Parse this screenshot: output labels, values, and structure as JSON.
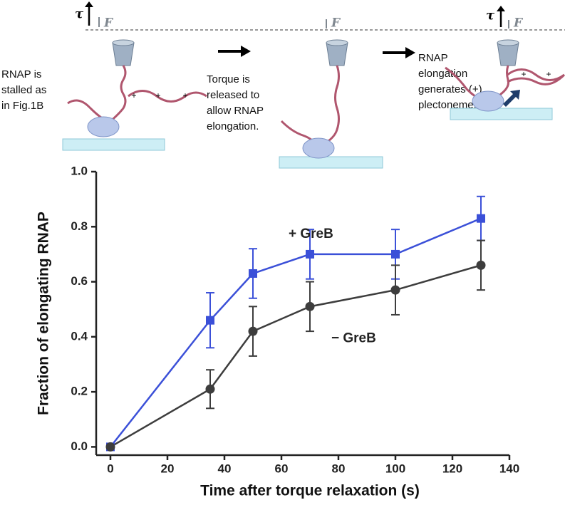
{
  "diagram": {
    "panels": [
      {
        "lines": [
          "RNAP is",
          "stalled as",
          "in Fig.1B"
        ]
      },
      {
        "lines": [
          "Torque is",
          "released to",
          "allow RNAP",
          "elongation."
        ]
      },
      {
        "lines": [
          "RNAP",
          "elongation",
          "generates (+)",
          "plectoneme."
        ]
      }
    ],
    "torque": "τ",
    "force": "F",
    "plus": "+"
  },
  "chart_data": {
    "type": "line",
    "xlabel": "Time after torque relaxation (s)",
    "ylabel": "Fraction of elongating RNAP",
    "x": [
      0,
      35,
      50,
      70,
      100,
      130
    ],
    "series": [
      {
        "name": "+ GreB",
        "color": "#3b50d8",
        "marker": "square",
        "values": [
          0,
          0.46,
          0.63,
          0.7,
          0.7,
          0.83
        ],
        "errors": [
          0,
          0.1,
          0.09,
          0.09,
          0.09,
          0.08
        ]
      },
      {
        "name": "− GreB",
        "color": "#3d3d3d",
        "marker": "circle",
        "values": [
          0,
          0.21,
          0.42,
          0.51,
          0.57,
          0.66
        ],
        "errors": [
          0,
          0.07,
          0.09,
          0.09,
          0.09,
          0.09
        ]
      }
    ],
    "xlim": [
      -5,
      140
    ],
    "xticks": [
      0,
      20,
      40,
      60,
      80,
      100,
      120,
      140
    ],
    "ylim": [
      -0.03,
      1.0
    ],
    "yticks": [
      {
        "value": 0,
        "label": "0.0"
      },
      0.2,
      0.4,
      0.6,
      0.8,
      {
        "value": 1,
        "label": "1.0"
      }
    ],
    "grid": false
  }
}
